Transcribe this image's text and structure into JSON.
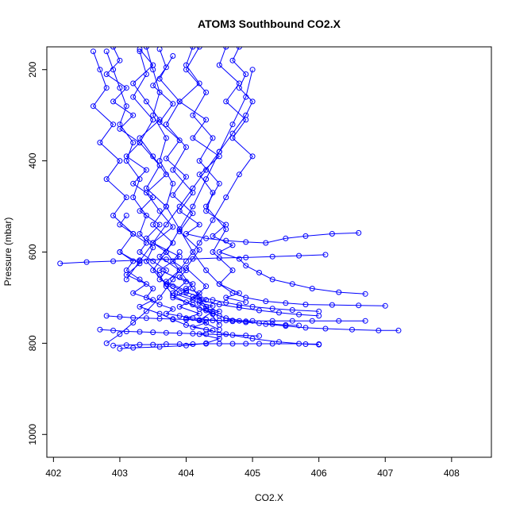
{
  "chart_data": {
    "type": "line",
    "title": "ATOM3 Southbound CO2.X",
    "xlabel": "CO2.X",
    "ylabel": "Pressure (mbar)",
    "xlim": [
      401.9,
      408.6
    ],
    "ylim": [
      1050,
      150
    ],
    "y_reversed": true,
    "x_ticks": [
      402,
      403,
      404,
      405,
      406,
      407,
      408
    ],
    "y_ticks": [
      200,
      400,
      600,
      800,
      1000
    ],
    "grid": false,
    "legend": "none",
    "series_color": "#0000ff",
    "marker": "open-circle",
    "series": [
      {
        "x": [
          403.3,
          403.5,
          403.2,
          403.4,
          403.6,
          403.3,
          403.5,
          403.7,
          403.4,
          403.6,
          403.8,
          403.5,
          403.9,
          403.6,
          404.0,
          403.8,
          404.1,
          403.9,
          404.2,
          404.0,
          404.3,
          404.1,
          404.4,
          404.2,
          404.5,
          404.3,
          404.0,
          403.6,
          403.2,
          403.0
        ],
        "y": [
          155,
          190,
          230,
          270,
          310,
          350,
          390,
          430,
          470,
          510,
          545,
          580,
          610,
          640,
          665,
          690,
          705,
          720,
          735,
          745,
          755,
          765,
          772,
          780,
          790,
          800,
          805,
          808,
          810,
          812
        ]
      },
      {
        "x": [
          402.8,
          402.9,
          403.0,
          403.1,
          403.0,
          403.2,
          403.1,
          403.3,
          403.2,
          403.4,
          403.3,
          403.5,
          403.4,
          403.6,
          403.7,
          403.8,
          404.0,
          404.2,
          404.4,
          404.6,
          404.9,
          405.2,
          405.5,
          405.8,
          406.1,
          406.5,
          406.9,
          407.2
        ],
        "y": [
          160,
          200,
          240,
          280,
          320,
          360,
          400,
          440,
          480,
          520,
          560,
          590,
          620,
          650,
          675,
          695,
          710,
          725,
          735,
          745,
          752,
          758,
          762,
          766,
          768,
          770,
          772,
          772
        ]
      },
      {
        "x": [
          404.1,
          404.0,
          404.2,
          403.9,
          404.3,
          404.1,
          404.5,
          404.2,
          404.4,
          404.3,
          404.6,
          404.4,
          404.7,
          404.5,
          404.8,
          404.9,
          405.1,
          405.3,
          405.6,
          405.9,
          406.3,
          406.7
        ],
        "y": [
          150,
          190,
          230,
          270,
          310,
          350,
          390,
          430,
          470,
          510,
          540,
          565,
          585,
          600,
          615,
          630,
          645,
          660,
          670,
          680,
          688,
          692
        ]
      },
      {
        "x": [
          402.6,
          402.7,
          402.8,
          402.6,
          402.9,
          402.7,
          403.0,
          402.8,
          403.1,
          402.9,
          403.2,
          403.0,
          403.3,
          403.1,
          403.4,
          403.2,
          403.5,
          403.3,
          403.6,
          403.8,
          404.0,
          404.3,
          404.6,
          405.0,
          405.4,
          405.8,
          406.0
        ],
        "y": [
          160,
          200,
          240,
          280,
          320,
          360,
          400,
          440,
          480,
          520,
          560,
          600,
          625,
          650,
          670,
          690,
          705,
          720,
          735,
          748,
          760,
          770,
          780,
          790,
          797,
          802,
          803
        ]
      },
      {
        "x": [
          403.8,
          403.6,
          403.9,
          403.7,
          404.0,
          403.8,
          404.1,
          403.9,
          404.2,
          404.0,
          404.3,
          404.6,
          404.9,
          405.2,
          405.5,
          405.8,
          406.2,
          406.6
        ],
        "y": [
          170,
          220,
          270,
          320,
          370,
          420,
          470,
          510,
          540,
          560,
          570,
          575,
          578,
          580,
          570,
          565,
          560,
          558
        ]
      },
      {
        "x": [
          403.0,
          403.2,
          403.1,
          403.3,
          403.5,
          403.4,
          403.6,
          403.8,
          403.7,
          403.9,
          404.1,
          404.3,
          404.5,
          404.7,
          404.9,
          405.1,
          405.3,
          405.5,
          405.7
        ],
        "y": [
          600,
          620,
          640,
          660,
          680,
          700,
          715,
          725,
          735,
          740,
          745,
          748,
          750,
          752,
          754,
          756,
          758,
          760,
          761
        ]
      },
      {
        "x": [
          402.1,
          402.5,
          402.9,
          403.3,
          403.7,
          404.1,
          404.5,
          404.9,
          405.3,
          405.7,
          406.1
        ],
        "y": [
          625,
          622,
          620,
          618,
          616,
          615,
          613,
          612,
          610,
          608,
          606
        ]
      },
      {
        "x": [
          403.4,
          403.5,
          403.6,
          403.5,
          403.7,
          403.6,
          403.8,
          403.7,
          403.9,
          404.1,
          404.3,
          404.5,
          404.7,
          404.9,
          405.2,
          405.5,
          405.8,
          406.2,
          406.6,
          407.0
        ],
        "y": [
          150,
          200,
          250,
          300,
          350,
          400,
          450,
          500,
          550,
          600,
          640,
          670,
          690,
          700,
          708,
          712,
          715,
          716,
          717,
          718
        ]
      },
      {
        "x": [
          404.6,
          404.5,
          404.8,
          404.6,
          404.9,
          404.7,
          405.0,
          404.8,
          404.6,
          404.4,
          404.2,
          404.0,
          403.8,
          403.6,
          403.4,
          403.2,
          403.0,
          402.8
        ],
        "y": [
          150,
          190,
          230,
          270,
          310,
          350,
          390,
          430,
          480,
          530,
          580,
          620,
          660,
          700,
          730,
          755,
          780,
          800
        ]
      },
      {
        "x": [
          402.9,
          403.0,
          402.8,
          403.1,
          402.9,
          403.2,
          403.0,
          403.3,
          403.1,
          403.4,
          403.2,
          403.5,
          403.3,
          403.6,
          403.4,
          403.7,
          403.9,
          404.1,
          404.3,
          404.5
        ],
        "y": [
          150,
          180,
          210,
          240,
          270,
          300,
          330,
          360,
          390,
          420,
          450,
          480,
          510,
          540,
          570,
          600,
          640,
          680,
          720,
          760
        ]
      },
      {
        "x": [
          405.0,
          404.9,
          404.7,
          404.5,
          404.3,
          404.1,
          403.9,
          403.7,
          403.5,
          403.7,
          403.9,
          404.2,
          404.5,
          404.8,
          405.1,
          405.4,
          405.7,
          406.0
        ],
        "y": [
          200,
          260,
          320,
          380,
          440,
          500,
          550,
          600,
          640,
          670,
          690,
          705,
          715,
          722,
          728,
          733,
          737,
          740
        ]
      },
      {
        "x": [
          403.6,
          403.7,
          403.5,
          403.8,
          403.6,
          403.9,
          403.7,
          404.0,
          403.8,
          404.1,
          403.9,
          404.2,
          404.0,
          404.3,
          404.1,
          404.4,
          404.2,
          404.5
        ],
        "y": [
          155,
          195,
          235,
          275,
          315,
          355,
          395,
          435,
          475,
          515,
          555,
          595,
          635,
          675,
          705,
          730,
          750,
          770
        ]
      },
      {
        "x": [
          402.7,
          402.9,
          403.1,
          403.3,
          403.5,
          403.7,
          403.9,
          404.1,
          404.3,
          404.5,
          404.7,
          404.9,
          405.1
        ],
        "y": [
          770,
          772,
          774,
          775,
          776,
          777,
          778,
          779,
          780,
          781,
          782,
          783,
          784
        ]
      },
      {
        "x": [
          402.9,
          403.1,
          403.3,
          403.5,
          403.7,
          403.9,
          404.1,
          404.3,
          404.5,
          404.7,
          404.9,
          405.1,
          405.3,
          405.7,
          406.0
        ],
        "y": [
          805,
          804,
          803,
          803,
          802,
          802,
          802,
          801,
          801,
          801,
          801,
          801,
          801,
          801,
          802
        ]
      },
      {
        "x": [
          404.2,
          404.0,
          404.3,
          404.1,
          404.4,
          404.2,
          404.5,
          404.3,
          404.6,
          404.4,
          404.7,
          404.5,
          404.8,
          404.6,
          404.9
        ],
        "y": [
          150,
          200,
          250,
          300,
          350,
          400,
          450,
          500,
          550,
          600,
          640,
          670,
          690,
          700,
          710
        ]
      },
      {
        "x": [
          403.1,
          403.0,
          403.2,
          403.4,
          403.3,
          403.5,
          403.7,
          403.6,
          403.8,
          404.0,
          404.2,
          404.4,
          404.6,
          404.8,
          405.0,
          405.3,
          405.6,
          406.0
        ],
        "y": [
          520,
          540,
          560,
          580,
          600,
          620,
          640,
          660,
          675,
          688,
          698,
          705,
          711,
          716,
          720,
          724,
          727,
          730
        ]
      },
      {
        "x": [
          402.8,
          403.0,
          403.2,
          403.4,
          403.6,
          403.8,
          404.0,
          404.2,
          404.4,
          404.6,
          404.8,
          405.0,
          405.3,
          405.6,
          405.9,
          406.3,
          406.7
        ],
        "y": [
          740,
          742,
          744,
          745,
          746,
          747,
          748,
          749,
          750,
          750,
          751,
          751,
          751,
          751,
          751,
          751,
          751
        ]
      },
      {
        "x": [
          403.9,
          403.8,
          404.0,
          403.9,
          404.1,
          404.0,
          404.2,
          404.1,
          404.3,
          404.2,
          404.4,
          404.3,
          404.5,
          404.4
        ],
        "y": [
          600,
          620,
          640,
          655,
          670,
          680,
          690,
          698,
          705,
          712,
          718,
          724,
          730,
          736
        ]
      },
      {
        "x": [
          404.8,
          404.7,
          404.9,
          404.8,
          405.0,
          404.9,
          404.7,
          404.5,
          404.3,
          404.1,
          403.9,
          403.7,
          403.5,
          403.3,
          403.1
        ],
        "y": [
          150,
          180,
          210,
          240,
          270,
          300,
          340,
          380,
          420,
          460,
          500,
          540,
          580,
          620,
          660
        ]
      },
      {
        "x": [
          403.3,
          403.4,
          403.2,
          403.5,
          403.3,
          403.6,
          403.4,
          403.7,
          403.5,
          403.8,
          403.6,
          403.9,
          403.7,
          404.0,
          403.8,
          404.1,
          404.3,
          404.5,
          404.7
        ],
        "y": [
          160,
          210,
          260,
          310,
          360,
          410,
          460,
          500,
          540,
          580,
          610,
          640,
          665,
          685,
          700,
          715,
          728,
          740,
          750
        ]
      }
    ]
  }
}
